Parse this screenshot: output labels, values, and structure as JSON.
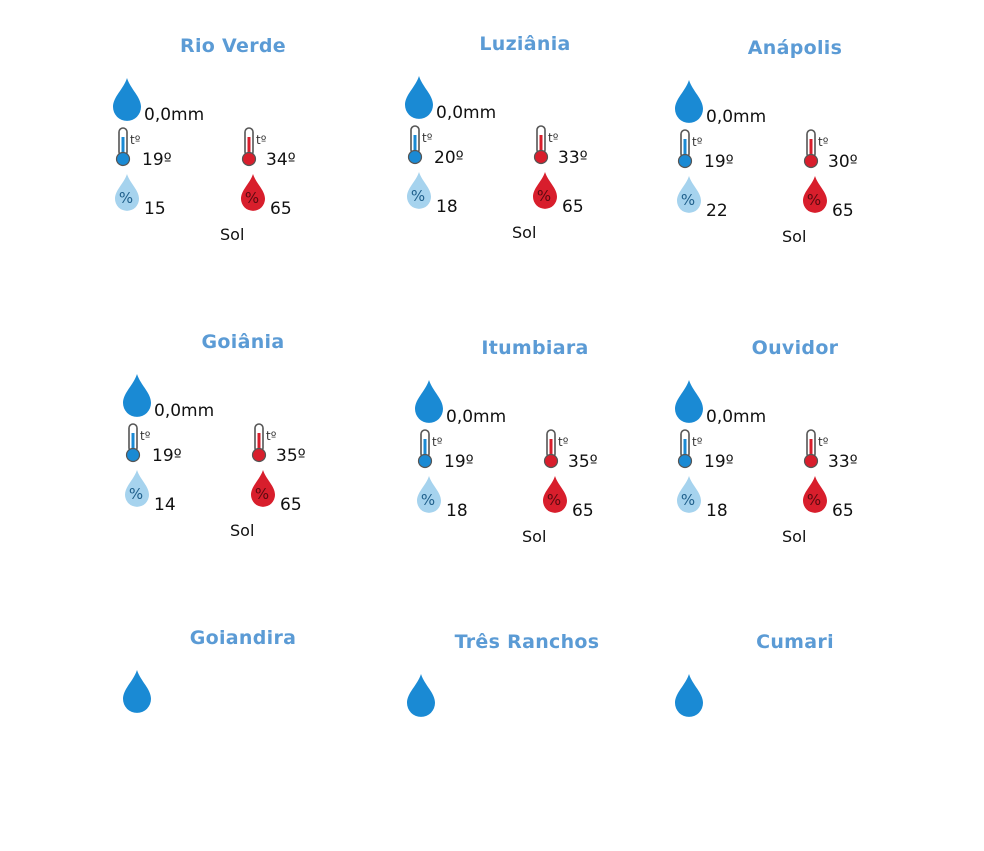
{
  "colors": {
    "title": "#5b9bd5",
    "rain_drop": "#1a8ad4",
    "humidity_low_drop": "#a6d3ee",
    "humidity_high_drop": "#d81e2c",
    "thermo_cold": "#1a8ad4",
    "thermo_hot": "#d81e2c"
  },
  "icons": {
    "rain": "rain-drop-icon",
    "temp_min": "thermometer-cold-icon",
    "temp_max": "thermometer-hot-icon",
    "humidity_min": "humidity-low-icon",
    "humidity_max": "humidity-high-icon",
    "temp_symbol": "tº",
    "humidity_symbol": "%"
  },
  "cities": [
    {
      "name": "Rio Verde",
      "rain": "0,0mm",
      "temp_min": "19º",
      "temp_max": "34º",
      "humidity_min": "15",
      "humidity_max": "65",
      "condition": "Sol"
    },
    {
      "name": "Luziânia",
      "rain": "0,0mm",
      "temp_min": "20º",
      "temp_max": "33º",
      "humidity_min": "18",
      "humidity_max": "65",
      "condition": "Sol"
    },
    {
      "name": "Anápolis",
      "rain": "0,0mm",
      "temp_min": "19º",
      "temp_max": "30º",
      "humidity_min": "22",
      "humidity_max": "65",
      "condition": "Sol"
    },
    {
      "name": "Goiânia",
      "rain": "0,0mm",
      "temp_min": "19º",
      "temp_max": "35º",
      "humidity_min": "14",
      "humidity_max": "65",
      "condition": "Sol"
    },
    {
      "name": "Itumbiara",
      "rain": "0,0mm",
      "temp_min": "19º",
      "temp_max": "35º",
      "humidity_min": "18",
      "humidity_max": "65",
      "condition": "Sol"
    },
    {
      "name": "Ouvidor",
      "rain": "0,0mm",
      "temp_min": "19º",
      "temp_max": "33º",
      "humidity_min": "18",
      "humidity_max": "65",
      "condition": "Sol"
    },
    {
      "name": "Goiandira",
      "rain": "",
      "temp_min": "",
      "temp_max": "",
      "humidity_min": "",
      "humidity_max": "",
      "condition": ""
    },
    {
      "name": "Três Ranchos",
      "rain": "",
      "temp_min": "",
      "temp_max": "",
      "humidity_min": "",
      "humidity_max": "",
      "condition": ""
    },
    {
      "name": "Cumari",
      "rain": "",
      "temp_min": "",
      "temp_max": "",
      "humidity_min": "",
      "humidity_max": "",
      "condition": ""
    }
  ]
}
